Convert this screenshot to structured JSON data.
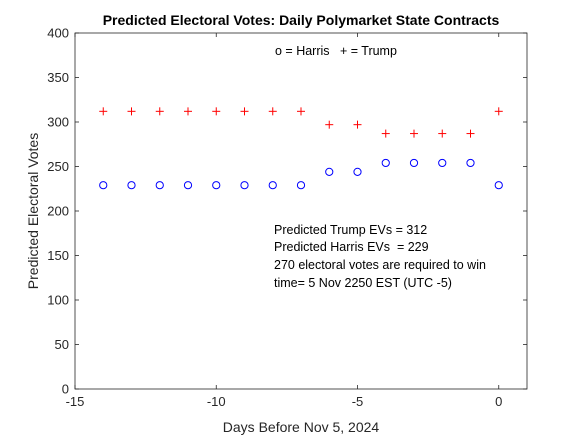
{
  "chart_data": {
    "type": "scatter",
    "title": "Predicted Electoral Votes:  Daily Polymarket State Contracts",
    "xlabel": "Days Before Nov 5, 2024",
    "ylabel": "Predicted Electoral Votes",
    "xlim": [
      -15,
      1
    ],
    "ylim": [
      0,
      400
    ],
    "xticks": [
      -15,
      -10,
      -5,
      0
    ],
    "yticks": [
      0,
      50,
      100,
      150,
      200,
      250,
      300,
      350,
      400
    ],
    "grid": false,
    "legend_text": "o = Harris   + = Trump",
    "series": [
      {
        "name": "Harris",
        "marker": "o",
        "color": "#0000ff",
        "x": [
          -14,
          -13,
          -12,
          -11,
          -10,
          -9,
          -8,
          -7,
          -6,
          -5,
          -4,
          -3,
          -2,
          -1,
          0
        ],
        "values": [
          229,
          229,
          229,
          229,
          229,
          229,
          229,
          229,
          244,
          244,
          254,
          254,
          254,
          254,
          229
        ]
      },
      {
        "name": "Trump",
        "marker": "+",
        "color": "#ff0000",
        "x": [
          -14,
          -13,
          -12,
          -11,
          -10,
          -9,
          -8,
          -7,
          -6,
          -5,
          -4,
          -3,
          -2,
          -1,
          0
        ],
        "values": [
          312,
          312,
          312,
          312,
          312,
          312,
          312,
          312,
          297,
          297,
          287,
          287,
          287,
          287,
          312
        ]
      }
    ],
    "annotations": [
      "Predicted Trump EVs = 312",
      "Predicted Harris EVs  = 229",
      "270 electoral votes are required to win",
      "time= 5 Nov 2250 EST (UTC -5)"
    ]
  }
}
